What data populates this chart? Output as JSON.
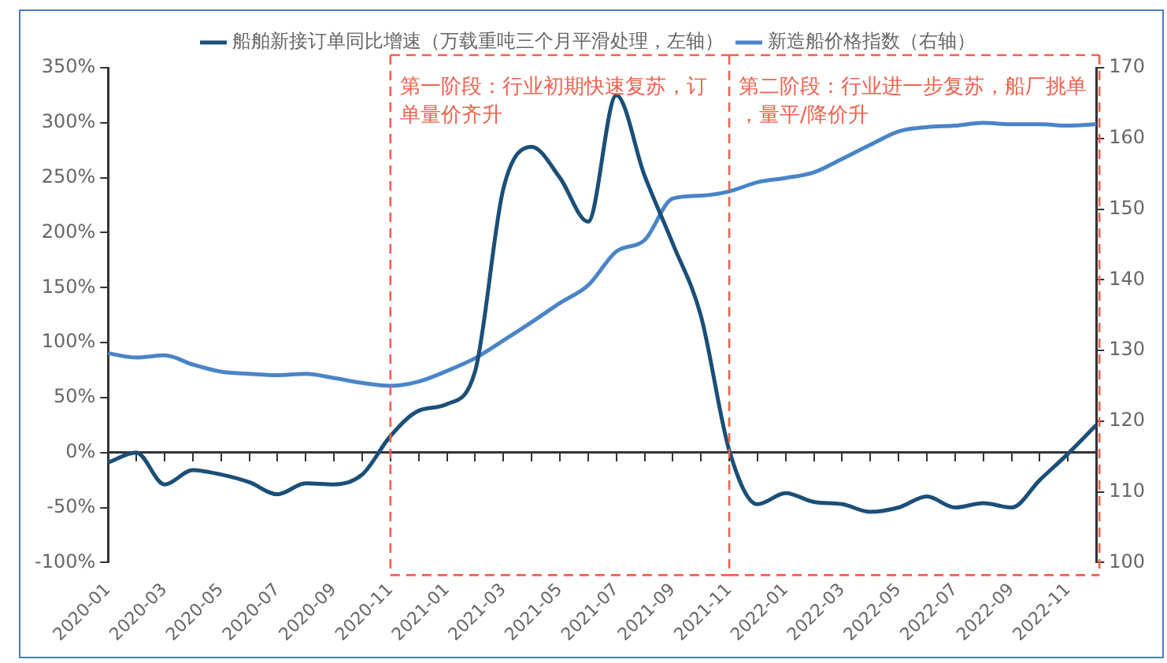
{
  "chart_data": {
    "type": "line",
    "categories": [
      "2020-01",
      null,
      "2020-03",
      null,
      "2020-05",
      null,
      "2020-07",
      null,
      "2020-09",
      null,
      "2020-11",
      null,
      "2021-01",
      null,
      "2021-03",
      null,
      "2021-05",
      null,
      "2021-07",
      null,
      "2021-09",
      null,
      "2021-11",
      null,
      "2022-01",
      null,
      "2022-03",
      null,
      "2022-05",
      null,
      "2022-07",
      null,
      "2022-09",
      null,
      "2022-11",
      null
    ],
    "series": [
      {
        "name": "船舶新接订单同比增速（万载重吨三个月平滑处理，左轴）",
        "color": "#1b4f78",
        "values": [
          -9,
          0,
          -29,
          -16,
          -20,
          -27,
          -38,
          -28,
          -29,
          -20,
          15,
          38,
          44,
          74,
          240,
          278,
          250,
          210,
          325,
          252,
          190,
          124,
          2,
          -47,
          -37,
          -45,
          -47,
          -54,
          -50,
          -40,
          -50,
          -46,
          -50,
          -25,
          -1,
          25
        ]
      },
      {
        "name": "新造船价格指数（右轴）",
        "color": "#4a84c8",
        "axis": "y2",
        "values": [
          129.6,
          129,
          129.3,
          128,
          127,
          126.7,
          126.5,
          126.7,
          126.1,
          125.4,
          125,
          125.6,
          127.1,
          128.9,
          131.4,
          134,
          136.7,
          139.2,
          144,
          145.6,
          151.5,
          151.9,
          152.5,
          153.8,
          154.4,
          155.2,
          157.1,
          159.1,
          161,
          161.6,
          161.8,
          162.2,
          162,
          162,
          161.8,
          162
        ]
      }
    ],
    "ylim": [
      -100,
      350
    ],
    "yticks": [
      {
        "value": -100,
        "label": "-100%"
      },
      {
        "value": -50,
        "label": "-50%"
      },
      {
        "value": 0,
        "label": "0%"
      },
      {
        "value": 50,
        "label": "50%"
      },
      {
        "value": 100,
        "label": "100%"
      },
      {
        "value": 150,
        "label": "150%"
      },
      {
        "value": 200,
        "label": "200%"
      },
      {
        "value": 250,
        "label": "250%"
      },
      {
        "value": 300,
        "label": "300%"
      },
      {
        "value": 350,
        "label": "350%"
      }
    ],
    "y2lim": [
      100,
      170
    ],
    "y2ticks": [
      100,
      110,
      120,
      130,
      140,
      150,
      160,
      170
    ],
    "ref_lines": [
      {
        "axis": "x",
        "value": "2020-11",
        "label": "第一阶段：行业初期快速复苏，订单量价齐升",
        "color": "#f0604d",
        "line_style": "dashed"
      },
      {
        "axis": "x",
        "value": "2021-11",
        "label": "第二阶段：行业进一步复苏，船厂挑单，量平/降价升",
        "color": "#f0604d",
        "line_style": "dashed"
      }
    ],
    "legend": "top",
    "grid": false,
    "marker": "none"
  }
}
